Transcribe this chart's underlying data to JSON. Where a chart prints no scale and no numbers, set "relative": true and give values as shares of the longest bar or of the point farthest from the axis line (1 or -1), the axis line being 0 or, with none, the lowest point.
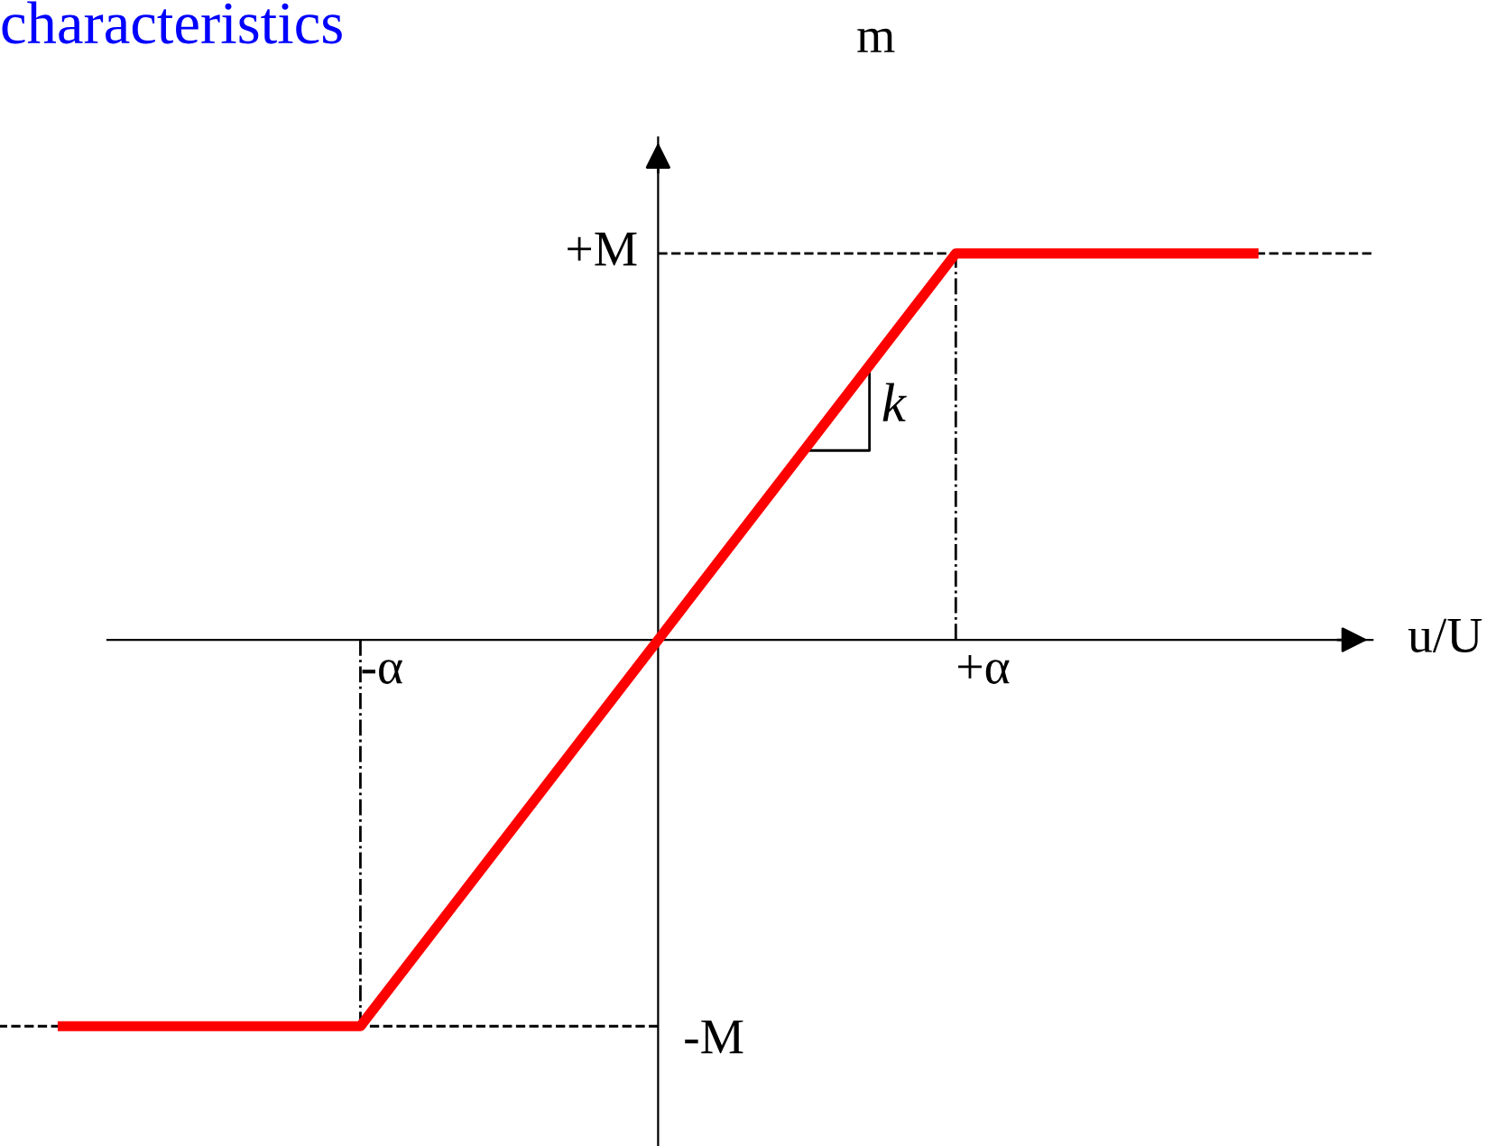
{
  "chart_data": {
    "type": "line",
    "title": "characteristics",
    "xlabel": "u/U",
    "ylabel": "m",
    "categories": [
      null,
      "-α",
      null,
      "+α",
      null
    ],
    "relative": true,
    "series": [
      {
        "color": "#ff0000",
        "values": [
          -1,
          -1,
          0,
          1,
          1
        ]
      }
    ],
    "ref_lines": [
      {
        "axis": "y",
        "value": 1,
        "label": "+M",
        "line_style": "dashed",
        "color": "#000000"
      },
      {
        "axis": "y",
        "value": -1,
        "label": "-M",
        "line_style": "dashed",
        "color": "#000000"
      },
      {
        "axis": "x",
        "value": "+α",
        "line_style": "dashdot",
        "color": "#000000"
      },
      {
        "axis": "x",
        "value": "-α",
        "line_style": "dashdot",
        "color": "#000000"
      }
    ],
    "annotations": [
      "k"
    ],
    "grid": false,
    "legend": false,
    "marker": "none",
    "line_style": "solid"
  }
}
